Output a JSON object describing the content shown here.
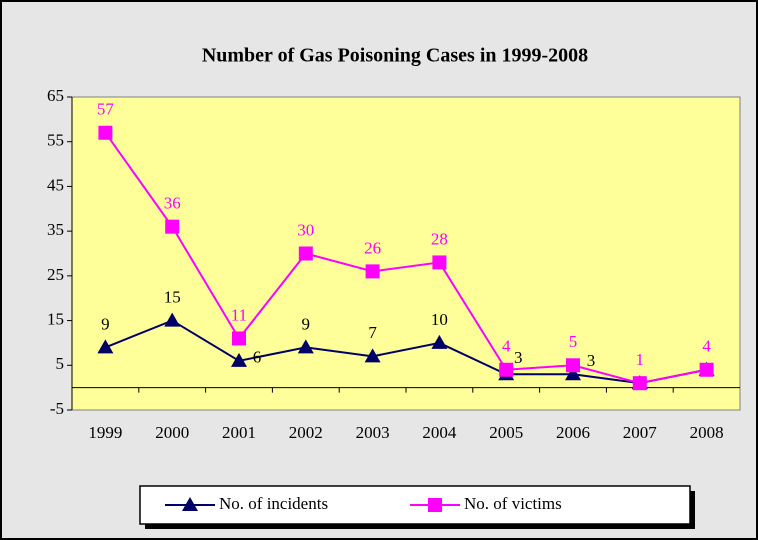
{
  "chart_data": {
    "type": "line",
    "title": "Number of Gas Poisoning Cases in 1999-2008",
    "categories": [
      "1999",
      "2000",
      "2001",
      "2002",
      "2003",
      "2004",
      "2005",
      "2006",
      "2007",
      "2008"
    ],
    "series": [
      {
        "name": "No. of incidents",
        "color": "#000066",
        "marker": "triangle",
        "values": [
          9,
          15,
          6,
          9,
          7,
          10,
          3,
          3,
          1,
          4
        ],
        "value_labels": [
          "9",
          "15",
          "6",
          "9",
          "7",
          "10",
          "3",
          "3",
          null,
          null
        ]
      },
      {
        "name": "No. of victims",
        "color": "#ff00ff",
        "marker": "square",
        "values": [
          57,
          36,
          11,
          30,
          26,
          28,
          4,
          5,
          1,
          4
        ]
      }
    ],
    "ylim": [
      -5,
      65
    ],
    "yticks": [
      -5,
      5,
      15,
      25,
      35,
      45,
      55,
      65
    ],
    "legend": "bottom",
    "plot_background": "#ffff99"
  }
}
